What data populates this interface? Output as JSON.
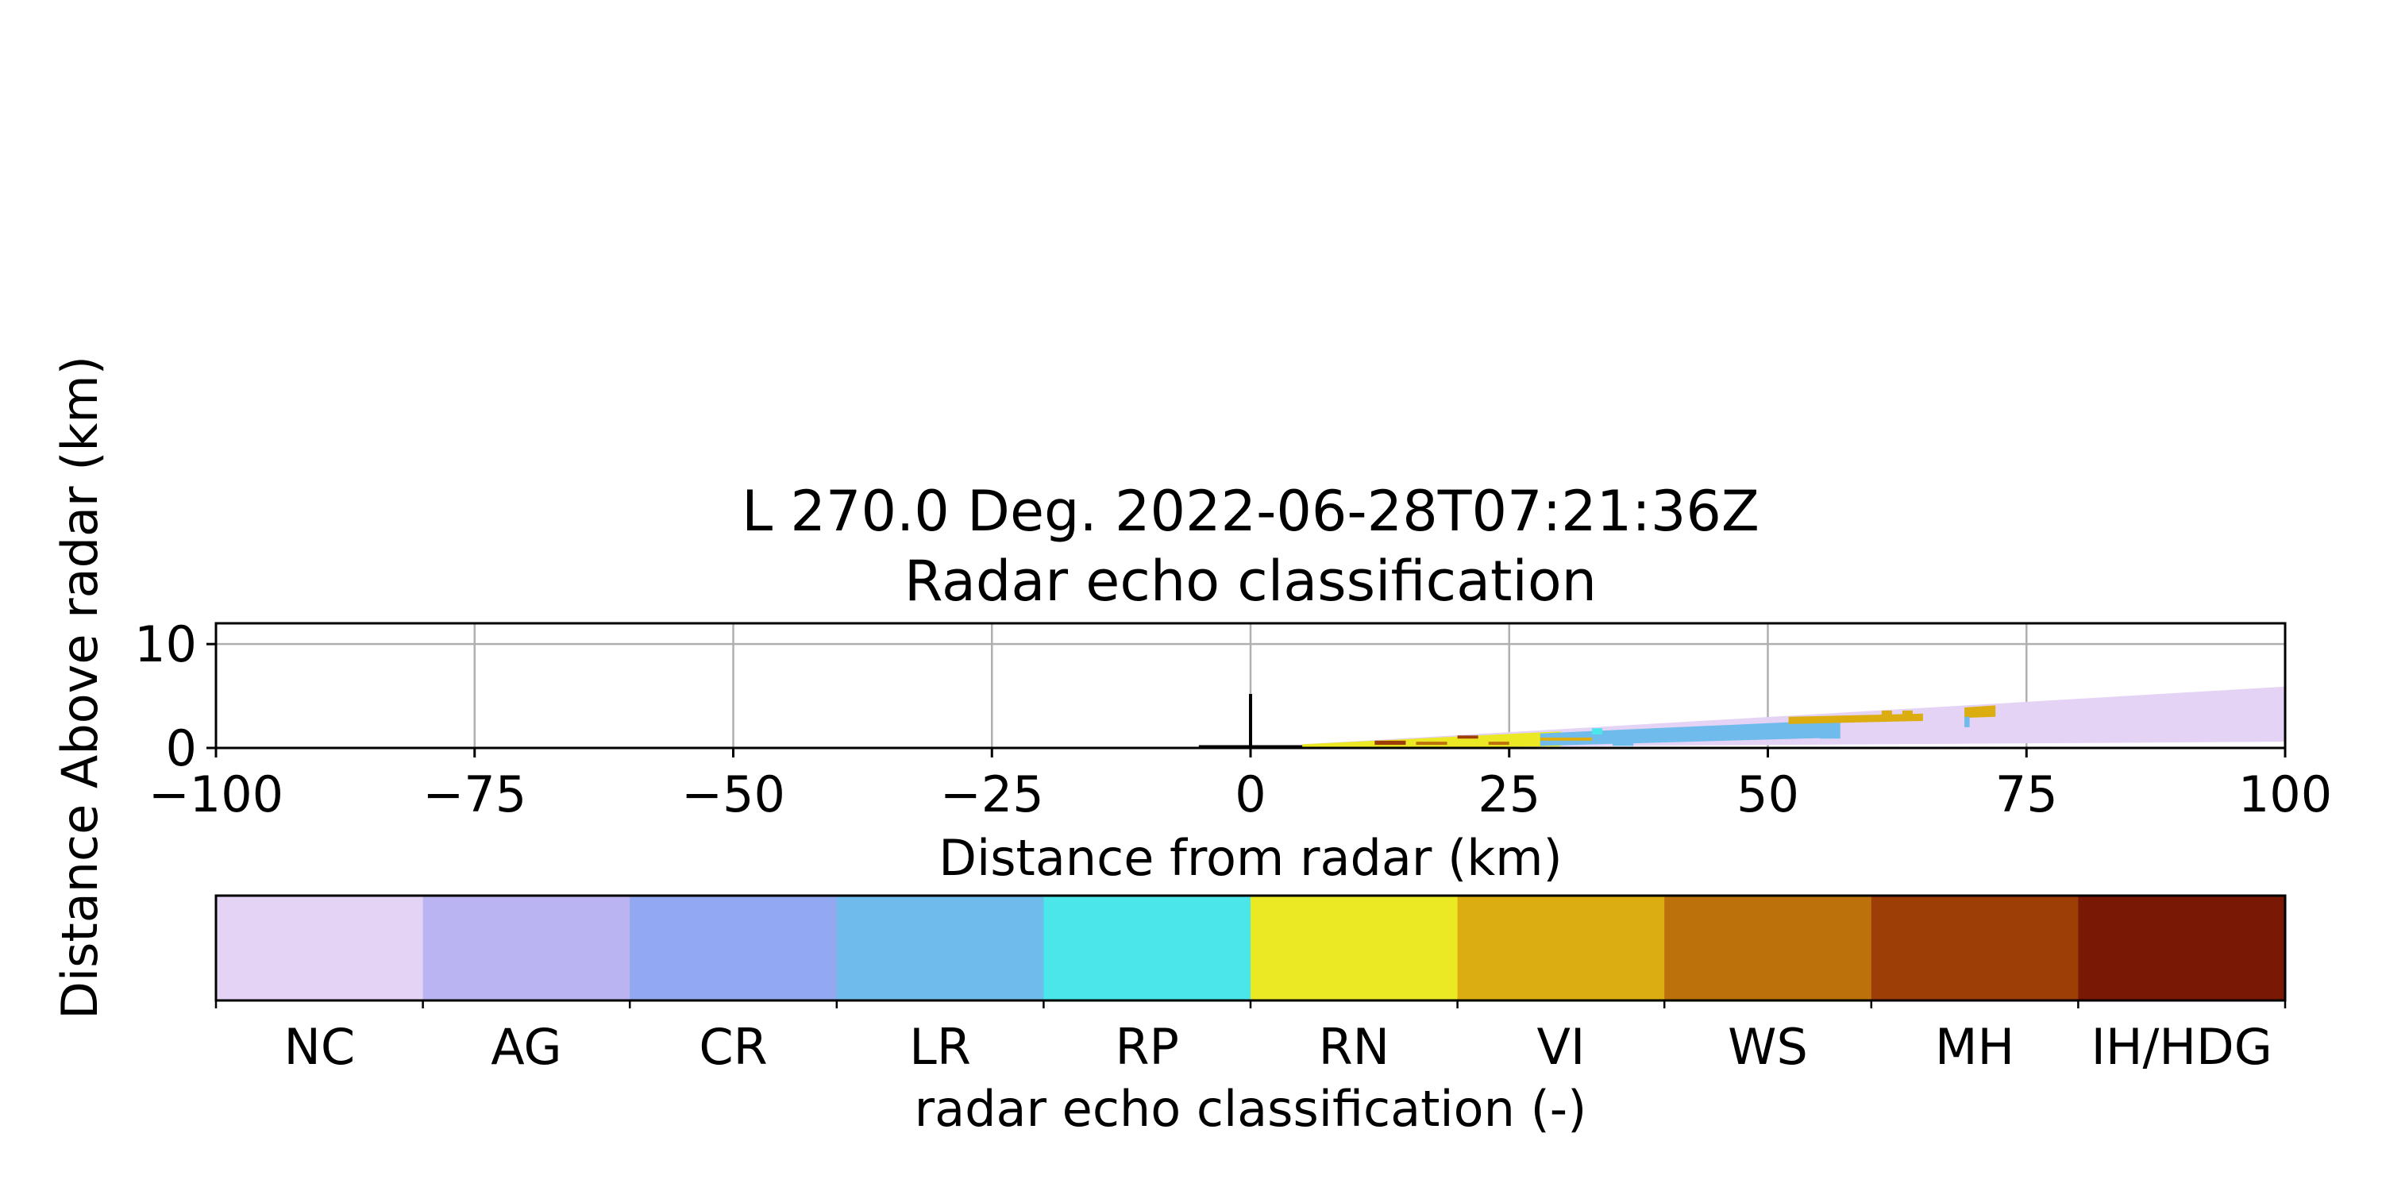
{
  "chart_data": {
    "type": "heatmap",
    "title_line1": "L 270.0 Deg. 2022-06-28T07:21:36Z",
    "title_line2": "Radar echo classification",
    "xlabel": "Distance from radar (km)",
    "ylabel": "Distance Above radar  (km)",
    "xlim": [
      -100,
      100
    ],
    "ylim": [
      0,
      12
    ],
    "xticks": [
      -100,
      -75,
      -50,
      -25,
      0,
      25,
      50,
      75,
      100
    ],
    "xtick_labels": [
      "−100",
      "−75",
      "−50",
      "−25",
      "0",
      "25",
      "50",
      "75",
      "100"
    ],
    "yticks": [
      0,
      10
    ],
    "ytick_labels": [
      "0",
      "10"
    ],
    "grid": true,
    "radar_marker": {
      "x": 0,
      "height": 5.2,
      "baseline_from": -5,
      "baseline_to": 5
    },
    "beam_regions": [
      {
        "class": "NC",
        "points": [
          [
            5,
            0
          ],
          [
            100,
            0.6
          ],
          [
            100,
            5.9
          ],
          [
            5,
            0.35
          ]
        ]
      },
      {
        "class": "RN",
        "points": [
          [
            5,
            0
          ],
          [
            30,
            0.15
          ],
          [
            30,
            1.6
          ],
          [
            5,
            0.35
          ]
        ]
      },
      {
        "class": "LR",
        "points": [
          [
            28,
            0.2
          ],
          [
            57,
            1.0
          ],
          [
            57,
            2.7
          ],
          [
            28,
            1.4
          ]
        ]
      },
      {
        "class": "VI",
        "points": [
          [
            52,
            2.3
          ],
          [
            65,
            2.6
          ],
          [
            65,
            3.3
          ],
          [
            52,
            3.0
          ]
        ]
      },
      {
        "class": "VI",
        "points": [
          [
            69,
            2.9
          ],
          [
            72,
            3.0
          ],
          [
            72,
            4.1
          ],
          [
            69,
            3.9
          ]
        ]
      }
    ],
    "echo_patches": [
      {
        "class": "MH",
        "x0": 12,
        "x1": 15,
        "y0": 0.3,
        "y1": 0.7
      },
      {
        "class": "WS",
        "x0": 16,
        "x1": 19,
        "y0": 0.3,
        "y1": 0.6
      },
      {
        "class": "MH",
        "x0": 20,
        "x1": 22,
        "y0": 0.9,
        "y1": 1.2
      },
      {
        "class": "WS",
        "x0": 23,
        "x1": 25,
        "y0": 0.3,
        "y1": 0.6
      },
      {
        "class": "VI",
        "x0": 28,
        "x1": 33,
        "y0": 0.7,
        "y1": 1.0
      },
      {
        "class": "RP",
        "x0": 33,
        "x1": 34,
        "y0": 1.3,
        "y1": 1.9
      },
      {
        "class": "LR",
        "x0": 35,
        "x1": 37,
        "y0": 0.2,
        "y1": 0.6
      },
      {
        "class": "LR",
        "x0": 55,
        "x1": 57,
        "y0": 0.9,
        "y1": 1.3
      },
      {
        "class": "VI",
        "x0": 61,
        "x1": 62,
        "y0": 2.8,
        "y1": 3.6
      },
      {
        "class": "VI",
        "x0": 63,
        "x1": 64,
        "y0": 2.8,
        "y1": 3.6
      },
      {
        "class": "LR",
        "x0": 69,
        "x1": 69.5,
        "y0": 2.0,
        "y1": 3.0
      }
    ],
    "colorbar": {
      "label": "radar echo classification (-)",
      "classes": [
        "NC",
        "AG",
        "CR",
        "LR",
        "RP",
        "RN",
        "VI",
        "WS",
        "MH",
        "IH/HDG"
      ],
      "colors": [
        "#e5d3f6",
        "#bab4f3",
        "#92a8f0",
        "#6fbbec",
        "#4ae6ea",
        "#ebe923",
        "#dcad10",
        "#bc710b",
        "#9d3e06",
        "#791805"
      ]
    }
  }
}
